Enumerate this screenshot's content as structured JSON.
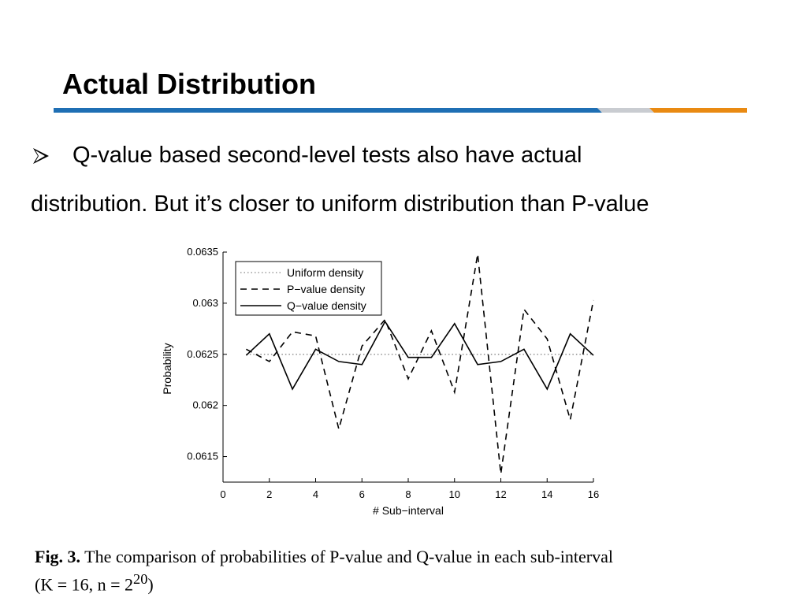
{
  "slide": {
    "title": "Actual Distribution",
    "bullet_line_1": "Q-value based second-level tests also have actual",
    "bullet_line_2": "distribution. But it’s closer to uniform distribution than P-value",
    "bullet_icon": "arrow-bullet-icon",
    "rule_colors": [
      "#1f6fb4",
      "#c9ccd1",
      "#e98a12"
    ]
  },
  "caption": {
    "label": "Fig. 3.",
    "text": "The comparison of probabilities of P-value and Q-value in each sub-interval",
    "params": "(K = 16,  n = 2",
    "exponent": "20",
    "close": ")"
  },
  "chart_data": {
    "type": "line",
    "xlabel": "# Sub−interval",
    "ylabel": "Probability",
    "xlim": [
      0,
      16
    ],
    "ylim": [
      0.06125,
      0.0635
    ],
    "xticks": [
      0,
      2,
      4,
      6,
      8,
      10,
      12,
      14,
      16
    ],
    "yticks": [
      0.0615,
      0.062,
      0.0625,
      0.063,
      0.0635
    ],
    "ytick_labels": [
      "0.0615",
      "0.062",
      "0.0625",
      "0.063",
      "0.0635"
    ],
    "legend_position": "top-left",
    "grid": false,
    "x": [
      1,
      2,
      3,
      4,
      5,
      6,
      7,
      8,
      9,
      10,
      11,
      12,
      13,
      14,
      15,
      16
    ],
    "series": [
      {
        "name": "Uniform density",
        "style": "dotted",
        "color": "#999999",
        "values": [
          0.0625,
          0.0625,
          0.0625,
          0.0625,
          0.0625,
          0.0625,
          0.0625,
          0.0625,
          0.0625,
          0.0625,
          0.0625,
          0.0625,
          0.0625,
          0.0625,
          0.0625,
          0.0625
        ]
      },
      {
        "name": "P−value density",
        "style": "dashed",
        "color": "#000000",
        "values": [
          0.06255,
          0.06243,
          0.06272,
          0.06268,
          0.06177,
          0.06258,
          0.06284,
          0.06226,
          0.06273,
          0.06213,
          0.06348,
          0.06133,
          0.06294,
          0.06265,
          0.06186,
          0.06303
        ]
      },
      {
        "name": "Q−value density",
        "style": "solid",
        "color": "#000000",
        "values": [
          0.06249,
          0.0627,
          0.06216,
          0.06255,
          0.06243,
          0.0624,
          0.06282,
          0.06247,
          0.06247,
          0.0628,
          0.0624,
          0.06243,
          0.06255,
          0.06216,
          0.0627,
          0.06249
        ]
      }
    ]
  }
}
